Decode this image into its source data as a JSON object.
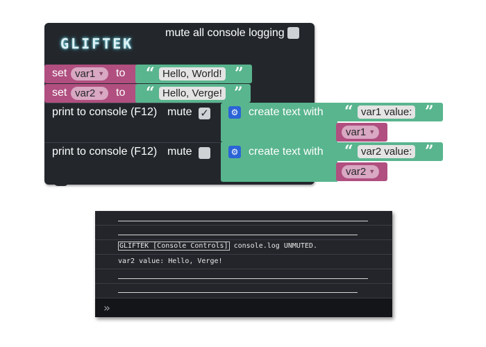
{
  "workspace": {
    "logo": "GLIFTEK",
    "mute_all_label": "mute all console logging",
    "set_blocks": [
      {
        "set_label": "set",
        "var_name": "var1",
        "to_label": "to",
        "text": "Hello, World!"
      },
      {
        "set_label": "set",
        "var_name": "var2",
        "to_label": "to",
        "text": "Hello, Verge!"
      }
    ],
    "print_blocks": [
      {
        "label": "print to console (F12)",
        "mute_label": "mute",
        "mute_checked": "✓",
        "create_label": "create text with",
        "text": "var1 value:",
        "var_name": "var1"
      },
      {
        "label": "print to console (F12)",
        "mute_label": "mute",
        "mute_checked": "",
        "create_label": "create text with",
        "text": "var2 value:",
        "var_name": "var2"
      }
    ],
    "open_quote": "“",
    "close_quote": "”",
    "dropdown_arrow": "▼",
    "gear_icon": "⚙"
  },
  "console": {
    "tag": "GLIFTEK [Console Controls]",
    "message": " console.log UNMUTED.",
    "output": "var2 value: Hello, Verge!",
    "prompt": "»"
  },
  "colors": {
    "workspace_block": "#23272c",
    "variable_block": "#b04f80",
    "text_block": "#59b58e",
    "gear": "#2b64d6",
    "console_bg": "#23252a"
  }
}
